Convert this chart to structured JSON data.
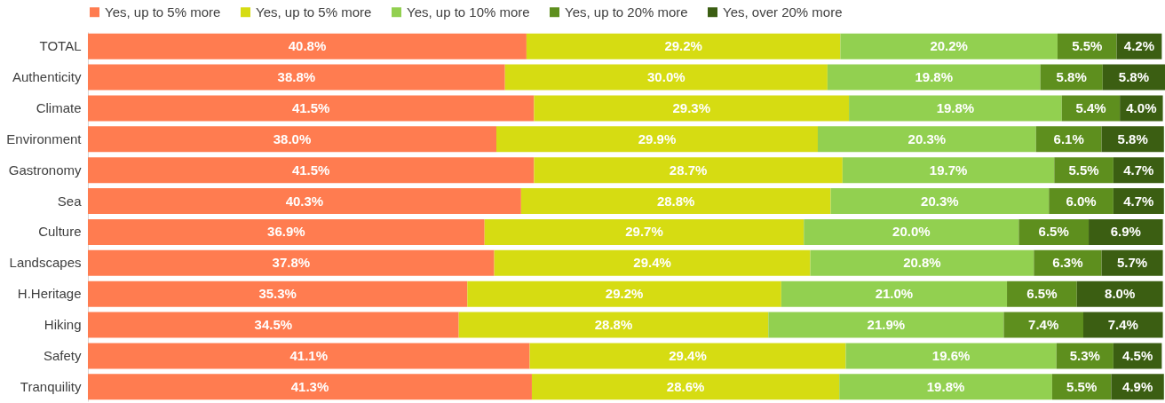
{
  "chart_data": {
    "type": "bar",
    "orientation": "horizontal",
    "stacked": true,
    "legend": "top",
    "categories": [
      "TOTAL",
      "Authenticity",
      "Climate",
      "Environment",
      "Gastronomy",
      "Sea",
      "Culture",
      "Landscapes",
      "H.Heritage",
      "Hiking",
      "Safety",
      "Tranquility"
    ],
    "series": [
      {
        "name": "Yes, up to 5% more",
        "color": "#ff7c50",
        "values": [
          40.8,
          38.8,
          41.5,
          38.0,
          41.5,
          40.3,
          36.9,
          37.8,
          35.3,
          34.5,
          41.1,
          41.3
        ],
        "value_labels": [
          "40.8%",
          "38.8%",
          "41.5%",
          "38.0%",
          "41.5%",
          "40.3%",
          "36.9%",
          "37.8%",
          "35.3%",
          "34.5%",
          "41.1%",
          "41.3%"
        ]
      },
      {
        "name": "Yes, up to 5% more",
        "color": "#d6dc12",
        "values": [
          29.2,
          30.0,
          29.3,
          29.9,
          28.7,
          28.8,
          29.7,
          29.4,
          29.2,
          28.8,
          29.4,
          28.6
        ],
        "value_labels": [
          "29.2%",
          "30.0%",
          "29.3%",
          "29.9%",
          "28.7%",
          "28.8%",
          "29.7%",
          "29.4%",
          "29.2%",
          "28.8%",
          "29.4%",
          "28.6%"
        ]
      },
      {
        "name": "Yes, up to 10% more",
        "color": "#92d050",
        "values": [
          20.2,
          19.8,
          19.8,
          20.3,
          19.7,
          20.3,
          20.0,
          20.8,
          21.0,
          21.9,
          19.6,
          19.8
        ],
        "value_labels": [
          "20.2%",
          "19.8%",
          "19.8%",
          "20.3%",
          "19.7%",
          "20.3%",
          "20.0%",
          "20.8%",
          "21.0%",
          "21.9%",
          "19.6%",
          "19.8%"
        ]
      },
      {
        "name": "Yes, up to 20% more",
        "color": "#5e8f1e",
        "values": [
          5.5,
          5.8,
          5.4,
          6.1,
          5.5,
          6.0,
          6.5,
          6.3,
          6.5,
          7.4,
          5.3,
          5.5
        ],
        "value_labels": [
          "5.5%",
          "5.8%",
          "5.4%",
          "6.1%",
          "5.5%",
          "6.0%",
          "6.5%",
          "6.3%",
          "6.5%",
          "7.4%",
          "5.3%",
          "5.5%"
        ]
      },
      {
        "name": "Yes, over 20% more",
        "color": "#3b5e12",
        "values": [
          4.2,
          5.8,
          4.0,
          5.8,
          4.7,
          4.7,
          6.9,
          5.7,
          8.0,
          7.4,
          4.5,
          4.9
        ],
        "value_labels": [
          "4.2%",
          "5.8%",
          "4.0%",
          "5.8%",
          "4.7%",
          "4.7%",
          "6.9%",
          "5.7%",
          "8.0%",
          "7.4%",
          "4.5%",
          "4.9%"
        ]
      }
    ]
  }
}
